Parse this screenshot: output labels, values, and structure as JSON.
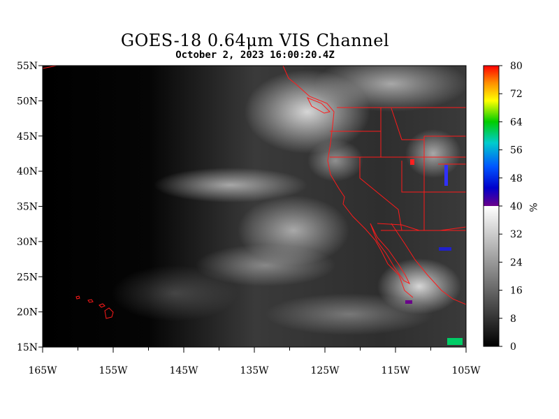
{
  "title": "GOES-18  0.64μm VIS Channel",
  "subtitle": "October  2,  2023 16:00:20.4Z",
  "map": {
    "lon_range": [
      -165,
      -105
    ],
    "lat_range": [
      15,
      55
    ],
    "boundary_color": "#ff1a1a",
    "lat_labels": [
      "55N",
      "50N",
      "45N",
      "40N",
      "35N",
      "30N",
      "25N",
      "20N",
      "15N"
    ],
    "lat_values": [
      55,
      50,
      45,
      40,
      35,
      30,
      25,
      20,
      15
    ],
    "lon_labels": [
      "165W",
      "155W",
      "145W",
      "135W",
      "125W",
      "115W",
      "105W"
    ],
    "lon_values": [
      -165,
      -155,
      -145,
      -135,
      -125,
      -115,
      -105
    ],
    "lon_minor": [
      -160,
      -150,
      -140,
      -130,
      -120,
      -110
    ]
  },
  "colorbar": {
    "labels": [
      "80",
      "72",
      "64",
      "56",
      "48",
      "40",
      "32",
      "24",
      "16",
      "8",
      "0"
    ],
    "values": [
      80,
      72,
      64,
      56,
      48,
      40,
      32,
      24,
      16,
      8,
      0
    ],
    "unit": "%",
    "range": [
      0,
      80
    ]
  }
}
